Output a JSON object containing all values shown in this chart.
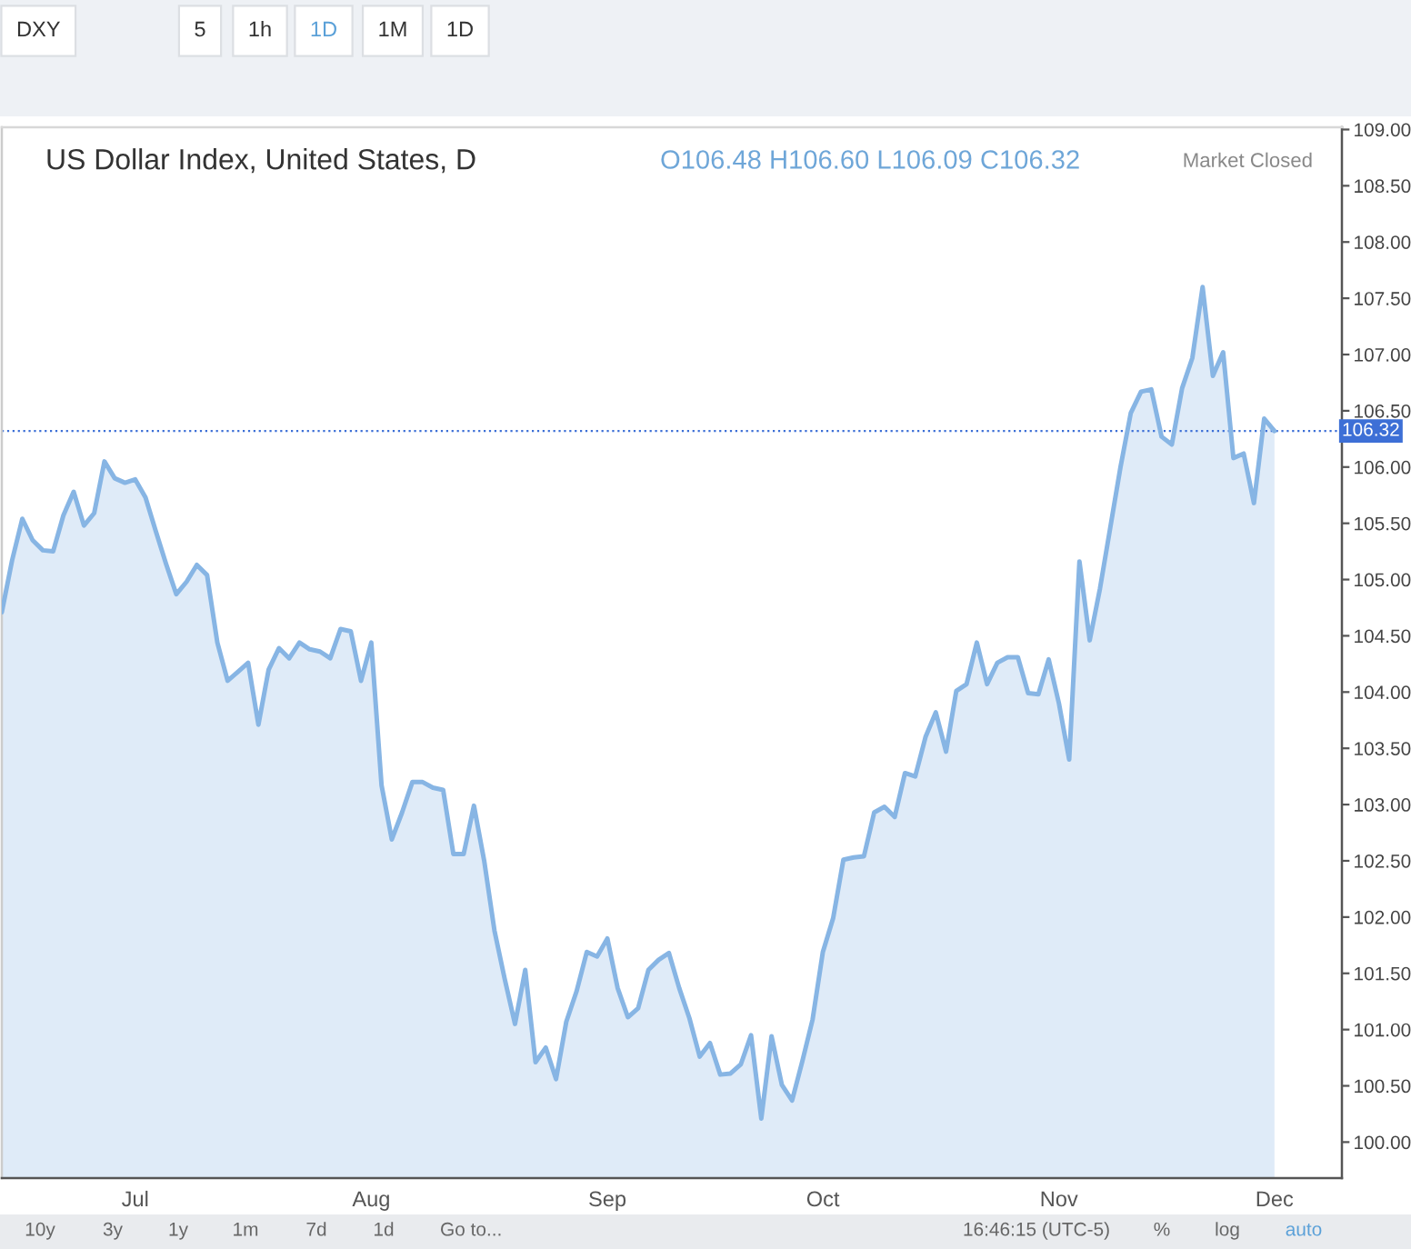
{
  "chart_data": {
    "type": "area",
    "title": "US Dollar Index, United States, D",
    "subtitle": "O106.48 H106.60 L106.09 C106.32",
    "annotations": [
      "Market Closed",
      "DXY",
      "5",
      "1h",
      "1D",
      "1M",
      "1D",
      "10y",
      "3y",
      "1y",
      "1m",
      "7d",
      "1d",
      "Go to...",
      "16:46:15 (UTC-5)",
      "%",
      "log",
      "auto"
    ],
    "categories": [
      null,
      null,
      null,
      null,
      null,
      null,
      null,
      null,
      null,
      null,
      null,
      null,
      null,
      "Jul",
      null,
      null,
      null,
      null,
      null,
      null,
      null,
      null,
      null,
      null,
      null,
      null,
      null,
      null,
      null,
      null,
      null,
      null,
      null,
      null,
      null,
      null,
      "Aug",
      null,
      null,
      null,
      null,
      null,
      null,
      null,
      null,
      null,
      null,
      null,
      null,
      null,
      null,
      null,
      null,
      null,
      null,
      null,
      null,
      null,
      null,
      "Sep",
      null,
      null,
      null,
      null,
      null,
      null,
      null,
      null,
      null,
      null,
      null,
      null,
      null,
      null,
      null,
      null,
      null,
      null,
      null,
      null,
      "Oct",
      null,
      null,
      null,
      null,
      null,
      null,
      null,
      null,
      null,
      null,
      null,
      null,
      null,
      null,
      null,
      null,
      null,
      null,
      null,
      null,
      null,
      null,
      "Nov",
      null,
      null,
      null,
      null,
      null,
      null,
      null,
      null,
      null,
      null,
      null,
      null,
      null,
      null,
      null,
      null,
      null,
      null,
      null,
      null,
      "Dec"
    ],
    "series": [
      {
        "color": "#87b5e4",
        "values": [
          104.71,
          105.17,
          105.54,
          105.35,
          105.26,
          105.25,
          105.57,
          105.78,
          105.48,
          105.59,
          106.05,
          105.9,
          105.86,
          105.89,
          105.73,
          105.43,
          105.14,
          104.87,
          104.98,
          105.13,
          105.04,
          104.44,
          104.1,
          104.18,
          104.26,
          103.71,
          104.2,
          104.39,
          104.3,
          104.44,
          104.38,
          104.36,
          104.3,
          104.56,
          104.54,
          104.1,
          104.44,
          103.17,
          102.69,
          102.93,
          103.2,
          103.2,
          103.15,
          103.13,
          102.56,
          102.56,
          102.99,
          102.5,
          101.88,
          101.45,
          101.05,
          101.53,
          100.71,
          100.84,
          100.56,
          101.07,
          101.34,
          101.69,
          101.65,
          101.81,
          101.37,
          101.11,
          101.19,
          101.53,
          101.62,
          101.68,
          101.37,
          101.1,
          100.76,
          100.88,
          100.6,
          100.61,
          100.69,
          100.95,
          100.21,
          100.94,
          100.51,
          100.37,
          100.72,
          101.09,
          101.69,
          101.99,
          102.51,
          102.53,
          102.54,
          102.93,
          102.98,
          102.89,
          103.28,
          103.25,
          103.6,
          103.82,
          103.47,
          104.01,
          104.07,
          104.44,
          104.07,
          104.26,
          104.31,
          104.31,
          103.99,
          103.98,
          104.29,
          103.9,
          103.4,
          105.16,
          104.46,
          104.92,
          105.46,
          106.0,
          106.48,
          106.67,
          106.69,
          106.27,
          106.2,
          106.7,
          106.97,
          107.6,
          106.81,
          107.02,
          106.08,
          106.12,
          105.68,
          106.43,
          106.32
        ]
      }
    ],
    "ylim": [
      99.68,
      109.02
    ],
    "yticks": [
      {
        "value": 100,
        "label": "100.00"
      },
      {
        "value": 100.5,
        "label": "100.50"
      },
      {
        "value": 101,
        "label": "101.00"
      },
      {
        "value": 101.5,
        "label": "101.50"
      },
      {
        "value": 102,
        "label": "102.00"
      },
      {
        "value": 102.5,
        "label": "102.50"
      },
      {
        "value": 103,
        "label": "103.00"
      },
      {
        "value": 103.5,
        "label": "103.50"
      },
      {
        "value": 104,
        "label": "104.00"
      },
      {
        "value": 104.5,
        "label": "104.50"
      },
      {
        "value": 105,
        "label": "105.00"
      },
      {
        "value": 105.5,
        "label": "105.50"
      },
      {
        "value": 106,
        "label": "106.00"
      },
      {
        "value": 106.5,
        "label": "106.50"
      },
      {
        "value": 107,
        "label": "107.00"
      },
      {
        "value": 107.5,
        "label": "107.50"
      },
      {
        "value": 108,
        "label": "108.00"
      },
      {
        "value": 108.5,
        "label": "108.50"
      },
      {
        "value": 109,
        "label": "109.00"
      }
    ],
    "ref_lines": [
      {
        "axis": "y",
        "value": 106.32,
        "label": "106.32",
        "color": "#3d6fd6",
        "line_style": "dotted"
      }
    ]
  }
}
